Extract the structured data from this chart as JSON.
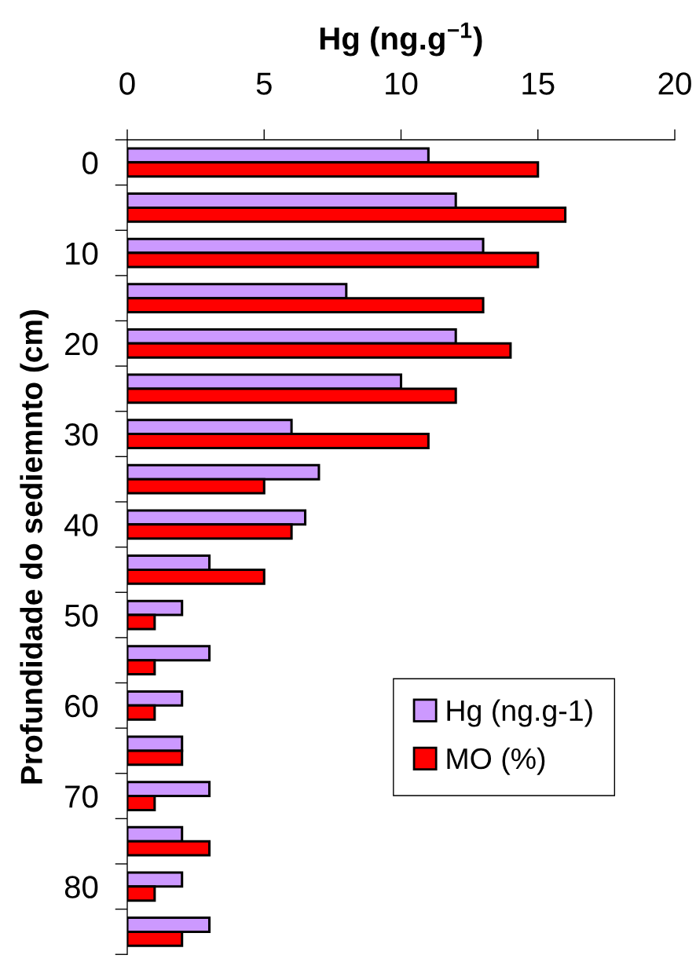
{
  "chart_data": {
    "type": "bar",
    "orientation": "horizontal",
    "xlabel": "Hg (ng.g$^{−1}$)",
    "ylabel": "Profundidade do sediemnto (cm)",
    "categories": [
      "0",
      null,
      "10",
      null,
      "20",
      null,
      "30",
      null,
      "40",
      null,
      "50",
      null,
      "60",
      null,
      "70",
      null,
      "80",
      null
    ],
    "series": [
      {
        "name": "Hg (ng.g-1)",
        "color": "#cc99ff",
        "values": [
          11,
          12,
          13,
          8,
          12,
          10,
          6,
          7,
          6.5,
          3,
          2,
          3,
          2,
          2,
          3,
          2,
          2,
          3
        ]
      },
      {
        "name": "MO (%)",
        "color": "#ff0000",
        "values": [
          15,
          16,
          15,
          13,
          14,
          12,
          11,
          5,
          6,
          5,
          1,
          1,
          1,
          2,
          1,
          3,
          1,
          2
        ]
      }
    ],
    "xlim": [
      0,
      20
    ],
    "xticks": [
      0,
      5,
      10,
      15,
      20
    ],
    "legend": "bottom right"
  }
}
